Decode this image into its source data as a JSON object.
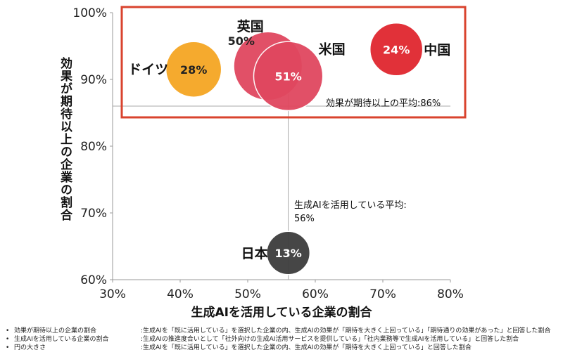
{
  "chart_data": {
    "type": "scatter",
    "xlabel": "生成AIを活用している企業の割合",
    "ylabel": "効果が期待以上の企業の割合",
    "xlim": [
      30,
      80
    ],
    "ylim": [
      60,
      100
    ],
    "x_ticks": [
      "30%",
      "40%",
      "50%",
      "60%",
      "70%",
      "80%"
    ],
    "y_ticks": [
      "100%",
      "90%",
      "80%",
      "70%",
      "60%"
    ],
    "points": [
      {
        "name": "ドイツ",
        "x": 42,
        "y": 91.5,
        "bubble_label": "28%",
        "size": 28,
        "color": "#f5a623"
      },
      {
        "name": "英国",
        "x": 53,
        "y": 92,
        "bubble_label": "50%",
        "size": 50,
        "color": "#e0475f"
      },
      {
        "name": "米国",
        "x": 56,
        "y": 90.5,
        "bubble_label": "51%",
        "size": 51,
        "color": "#e0475f"
      },
      {
        "name": "中国",
        "x": 72,
        "y": 94.5,
        "bubble_label": "24%",
        "size": 24,
        "color": "#e0262f"
      },
      {
        "name": "日本",
        "x": 56,
        "y": 64,
        "bubble_label": "13%",
        "size": 13,
        "color": "#3d3d3d"
      }
    ],
    "averages": {
      "y_avg_label": "効果が期待以上の平均:86%",
      "y_avg_value": 86,
      "x_avg_label": "生成AIを活用している平均:",
      "x_avg_value_label": "56%",
      "x_avg_value": 56
    },
    "highlight_color": "#d9432e"
  },
  "footnotes": [
    {
      "bullet": "•",
      "term": "効果が期待以上の企業の割合",
      "desc": ":生成AIを「既に活用している」を選択した企業の内、生成AIの効果が「期待を大きく上回っている」「期待通りの効果があった」と回答した割合"
    },
    {
      "bullet": "•",
      "term": "生成AIを活用している企業の割合",
      "desc": ":生成AIの推進度合いとして「社外向けの生成AI活用サービスを提供している」「社内業務等で生成AIを活用している」と回答した割合"
    },
    {
      "bullet": "•",
      "term": "円の大きさ",
      "desc": ":生成AIを「既に活用している」を選択した企業の内、生成AIの効果が「期待を大きく上回っている」と回答した割合"
    }
  ]
}
